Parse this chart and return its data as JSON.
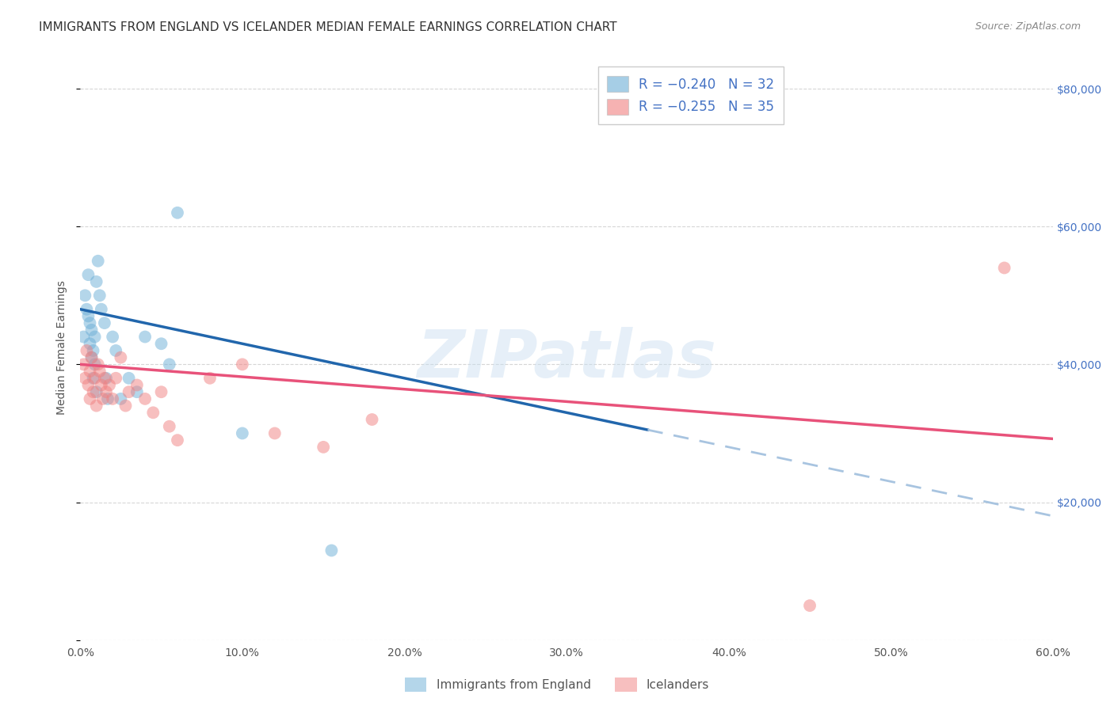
{
  "title": "IMMIGRANTS FROM ENGLAND VS ICELANDER MEDIAN FEMALE EARNINGS CORRELATION CHART",
  "source": "Source: ZipAtlas.com",
  "ylabel": "Median Female Earnings",
  "yticks": [
    0,
    20000,
    40000,
    60000,
    80000
  ],
  "ytick_labels": [
    "",
    "$20,000",
    "$40,000",
    "$60,000",
    "$80,000"
  ],
  "xmin": 0.0,
  "xmax": 0.6,
  "ymin": 0,
  "ymax": 85000,
  "legend_r_n_blue": "R = −0.240   N = 32",
  "legend_r_n_pink": "R = −0.255   N = 35",
  "legend_label_blue": "Immigrants from England",
  "legend_label_pink": "Icelanders",
  "scatter_blue_x": [
    0.002,
    0.003,
    0.004,
    0.005,
    0.005,
    0.006,
    0.006,
    0.007,
    0.007,
    0.008,
    0.008,
    0.009,
    0.009,
    0.01,
    0.01,
    0.011,
    0.012,
    0.013,
    0.015,
    0.016,
    0.017,
    0.02,
    0.022,
    0.025,
    0.03,
    0.035,
    0.04,
    0.05,
    0.055,
    0.06,
    0.1,
    0.155
  ],
  "scatter_blue_y": [
    44000,
    50000,
    48000,
    53000,
    47000,
    46000,
    43000,
    45000,
    41000,
    42000,
    38000,
    44000,
    40000,
    36000,
    52000,
    55000,
    50000,
    48000,
    46000,
    38000,
    35000,
    44000,
    42000,
    35000,
    38000,
    36000,
    44000,
    43000,
    40000,
    62000,
    30000,
    13000
  ],
  "scatter_pink_x": [
    0.002,
    0.003,
    0.004,
    0.005,
    0.006,
    0.006,
    0.007,
    0.008,
    0.009,
    0.01,
    0.011,
    0.012,
    0.013,
    0.014,
    0.015,
    0.016,
    0.018,
    0.02,
    0.022,
    0.025,
    0.028,
    0.03,
    0.035,
    0.04,
    0.045,
    0.05,
    0.055,
    0.06,
    0.08,
    0.1,
    0.12,
    0.15,
    0.18,
    0.45,
    0.57
  ],
  "scatter_pink_y": [
    40000,
    38000,
    42000,
    37000,
    39000,
    35000,
    41000,
    36000,
    38000,
    34000,
    40000,
    39000,
    37000,
    35000,
    38000,
    36000,
    37000,
    35000,
    38000,
    41000,
    34000,
    36000,
    37000,
    35000,
    33000,
    36000,
    31000,
    29000,
    38000,
    40000,
    30000,
    28000,
    32000,
    5000,
    54000
  ],
  "blue_line_slope": -50000,
  "blue_line_intercept": 48000,
  "blue_line_solid_end": 0.35,
  "pink_line_slope": -18000,
  "pink_line_intercept": 40000,
  "color_blue_scatter": "#6baed6",
  "color_pink_scatter": "#f08080",
  "color_blue_line": "#2166ac",
  "color_pink_line": "#e8527a",
  "color_blue_dashed": "#a8c4e0",
  "color_grid": "#cccccc",
  "color_title": "#333333",
  "color_source": "#888888",
  "color_axis_label": "#555555",
  "color_ytick": "#4472c4",
  "color_background": "#ffffff",
  "watermark": "ZIPatlas",
  "title_fontsize": 11,
  "source_fontsize": 9,
  "axis_label_fontsize": 10,
  "tick_fontsize": 10,
  "legend_fontsize": 12
}
